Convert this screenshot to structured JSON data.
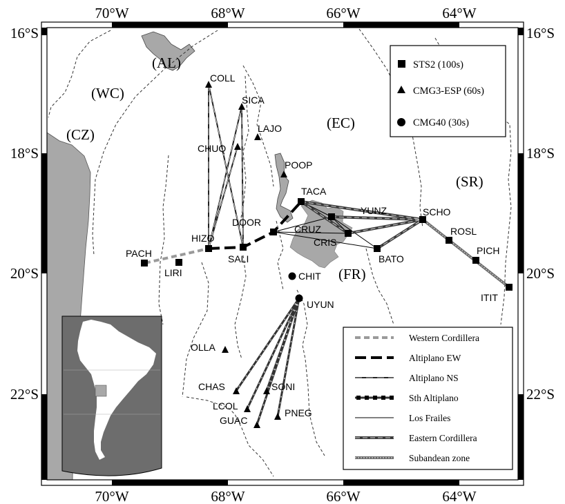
{
  "axes": {
    "top_lon": [
      "70°W",
      "68°W",
      "66°W",
      "64°W"
    ],
    "bottom_lon": [
      "70°W",
      "68°W",
      "66°W",
      "64°W"
    ],
    "left_lat": [
      "16°S",
      "18°S",
      "20°S",
      "22°S"
    ],
    "right_lat": [
      "16°S",
      "18°S",
      "20°S",
      "22°S"
    ]
  },
  "regions": {
    "al": "(AL)",
    "wc": "(WC)",
    "cz": "(CZ)",
    "ec": "(EC)",
    "sr": "(SR)",
    "fr": "(FR)"
  },
  "stations": {
    "coll": "COLL",
    "sica": "SICA",
    "lajo": "LAJO",
    "chuq": "CHUQ",
    "poop": "POOP",
    "taca": "TACA",
    "yunz": "YUNZ",
    "scho": "SCHO",
    "door": "DOOR",
    "cruz": "CRUZ",
    "hizo": "HIZO",
    "rosl": "ROSL",
    "cris": "CRIS",
    "pach": "PACH",
    "sali": "SALI",
    "bato": "BATO",
    "pich": "PICH",
    "liri": "LIRI",
    "chit": "CHIT",
    "itit": "ITIT",
    "uyun": "UYUN",
    "olla": "OLLA",
    "chas": "CHAS",
    "soni": "SONI",
    "lcol": "LCOL",
    "guac": "GUAC",
    "pneg": "PNEG"
  },
  "sensor_legend": {
    "sts2": "STS2 (100s)",
    "cmg3": "CMG3-ESP (60s)",
    "cmg40": "CMG40 (30s)"
  },
  "profile_legend": {
    "wc": "Western Cordillera",
    "aew": "Altiplano EW",
    "ans": "Altiplano NS",
    "sth": "Sth Altiplano",
    "lf": "Los Frailes",
    "ec": "Eastern Cordillera",
    "sz": "Subandean zone"
  },
  "colors": {
    "land_grey": "#a8a8a8",
    "inset_ocean": "#6d6d6d",
    "wc_profile": "#9a9a9a"
  }
}
